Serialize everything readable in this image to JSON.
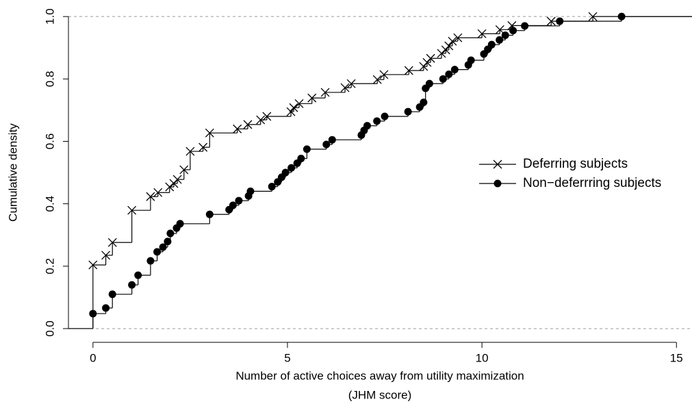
{
  "chart_data": {
    "type": "ecdf",
    "xlabel": [
      "Number of active choices away from utility maximization",
      "(JHM score)"
    ],
    "ylabel": "Cumulative density",
    "xlim": [
      -0.63,
      15.4
    ],
    "ylim": [
      -0.044,
      1.053
    ],
    "xticks": [
      0,
      5,
      10,
      15
    ],
    "yticks": [
      {
        "value": 0,
        "label": "0.0"
      },
      {
        "value": 0.2,
        "label": "0.2"
      },
      {
        "value": 0.4,
        "label": "0.4"
      },
      {
        "value": 0.6,
        "label": "0.6"
      },
      {
        "value": 0.8,
        "label": "0.8"
      },
      {
        "value": 1,
        "label": "1.0"
      }
    ],
    "reference_lines": [
      0,
      1
    ],
    "legend": "right",
    "series": [
      {
        "name": "Deferring subjects",
        "color": "#000000",
        "marker": "cross",
        "x": [
          0,
          0.33,
          0.5,
          1.0,
          1.48,
          1.67,
          1.97,
          2.08,
          2.17,
          2.34,
          2.5,
          2.83,
          3.0,
          3.71,
          3.98,
          4.31,
          4.47,
          5.09,
          5.16,
          5.3,
          5.63,
          5.97,
          6.48,
          6.64,
          7.31,
          7.48,
          8.12,
          8.5,
          8.59,
          8.68,
          8.96,
          9.07,
          9.15,
          9.24,
          9.38,
          10.0,
          10.46,
          10.77,
          11.78,
          12.85
        ],
        "values": [
          0.204,
          0.235,
          0.276,
          0.379,
          0.423,
          0.436,
          0.454,
          0.465,
          0.478,
          0.509,
          0.568,
          0.581,
          0.627,
          0.64,
          0.654,
          0.669,
          0.68,
          0.695,
          0.708,
          0.721,
          0.739,
          0.757,
          0.772,
          0.785,
          0.798,
          0.814,
          0.827,
          0.84,
          0.853,
          0.866,
          0.882,
          0.893,
          0.906,
          0.921,
          0.932,
          0.945,
          0.958,
          0.971,
          0.985,
          1.0
        ]
      },
      {
        "name": "Non−deferrring subjects",
        "color": "#000000",
        "marker": "dot",
        "x": [
          0,
          0.33,
          0.5,
          1.0,
          1.16,
          1.48,
          1.65,
          1.8,
          1.92,
          1.99,
          2.15,
          2.24,
          3.0,
          3.5,
          3.6,
          3.75,
          4.0,
          4.05,
          4.6,
          4.75,
          4.85,
          4.95,
          5.1,
          5.25,
          5.35,
          5.5,
          6.0,
          6.15,
          6.9,
          6.97,
          7.05,
          7.3,
          7.5,
          8.1,
          8.4,
          8.5,
          8.55,
          8.65,
          9.0,
          9.15,
          9.3,
          9.65,
          9.72,
          10.05,
          10.15,
          10.25,
          10.45,
          10.6,
          10.8,
          11.1,
          12.0,
          13.59
        ],
        "values": [
          0.048,
          0.066,
          0.11,
          0.14,
          0.171,
          0.217,
          0.246,
          0.261,
          0.279,
          0.305,
          0.322,
          0.336,
          0.366,
          0.381,
          0.395,
          0.41,
          0.425,
          0.44,
          0.455,
          0.47,
          0.485,
          0.5,
          0.515,
          0.53,
          0.545,
          0.575,
          0.59,
          0.605,
          0.62,
          0.635,
          0.65,
          0.665,
          0.68,
          0.695,
          0.71,
          0.725,
          0.77,
          0.785,
          0.8,
          0.815,
          0.83,
          0.845,
          0.86,
          0.88,
          0.895,
          0.91,
          0.925,
          0.94,
          0.955,
          0.97,
          0.985,
          1.0
        ]
      }
    ]
  }
}
